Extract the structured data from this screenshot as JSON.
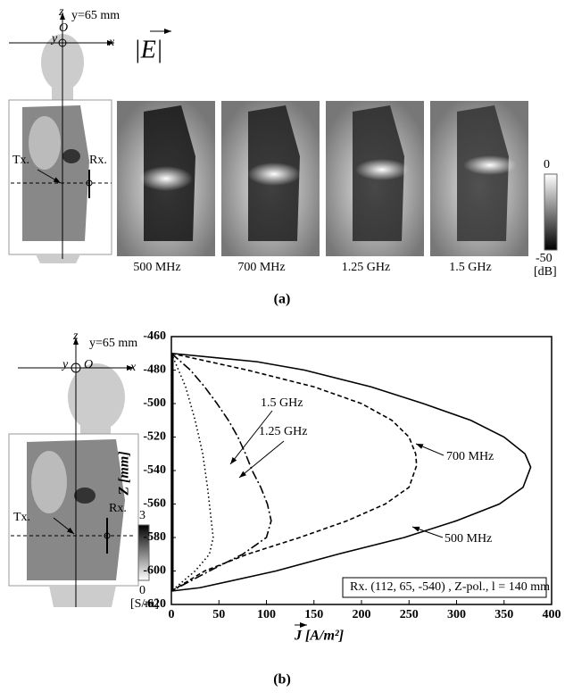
{
  "panel_a": {
    "axis_z": "z",
    "axis_y": "y",
    "origin": "O",
    "axis_x": "x",
    "plane": "y=65 mm",
    "quantity": "|E|",
    "tx": "Tx.",
    "rx": "Rx.",
    "frequencies": [
      "500 MHz",
      "700 MHz",
      "1.25 GHz",
      "1.5 GHz"
    ],
    "colorbar_max": "0",
    "colorbar_min": "-50",
    "colorbar_unit": "[dB]",
    "caption": "(a)"
  },
  "panel_b": {
    "axis_z": "z",
    "axis_y": "y",
    "origin": "O",
    "axis_x": "x",
    "plane": "y=65 mm",
    "tx": "Tx.",
    "rx": "Rx.",
    "colorbar_max": "3",
    "colorbar_min": "0",
    "colorbar_unit": "[S/m]",
    "caption": "(b)"
  },
  "chart_data": {
    "type": "line",
    "x_label": "J [A/m²]",
    "y_label": "Z [mm]",
    "annotation": "Rx. (112, 65, -540) , Z-pol., l = 140 mm",
    "xlim": [
      0,
      400
    ],
    "xticks": [
      0,
      50,
      100,
      150,
      200,
      250,
      300,
      350,
      400
    ],
    "ylim": [
      -620,
      -460
    ],
    "yticks": [
      -620,
      -600,
      -580,
      -560,
      -540,
      -520,
      -500,
      -480,
      -460
    ],
    "series": [
      {
        "name": "500 MHz",
        "color": "#000000",
        "dash": "solid",
        "x": [
          0,
          90,
          140,
          210,
          265,
          315,
          350,
          372,
          378,
          370,
          345,
          300,
          245,
          175,
          110,
          30,
          0
        ],
        "values": [
          -470,
          -475,
          -480,
          -490,
          -500,
          -510,
          -520,
          -530,
          -538,
          -550,
          -560,
          -570,
          -580,
          -590,
          -600,
          -610,
          -612
        ]
      },
      {
        "name": "700 MHz",
        "color": "#000000",
        "dash": "dashed",
        "x": [
          0,
          80,
          150,
          200,
          232,
          250,
          257,
          258,
          250,
          225,
          185,
          135,
          80,
          35,
          0
        ],
        "values": [
          -470,
          -480,
          -490,
          -500,
          -510,
          -520,
          -530,
          -537,
          -550,
          -560,
          -570,
          -580,
          -590,
          -600,
          -612
        ]
      },
      {
        "name": "1.25 GHz",
        "color": "#000000",
        "dash": "dashdot",
        "x": [
          0,
          20,
          35,
          48,
          60,
          70,
          78,
          85,
          94,
          101,
          105,
          100,
          75,
          40,
          0
        ],
        "values": [
          -470,
          -480,
          -490,
          -500,
          -510,
          -520,
          -530,
          -540,
          -550,
          -560,
          -570,
          -580,
          -590,
          -600,
          -612
        ]
      },
      {
        "name": "1.5 GHz",
        "color": "#000000",
        "dash": "dotted",
        "x": [
          0,
          15,
          25,
          33,
          38,
          42,
          44,
          40,
          25,
          0
        ],
        "values": [
          -470,
          -490,
          -510,
          -530,
          -550,
          -570,
          -580,
          -590,
          -600,
          -612
        ]
      }
    ]
  }
}
